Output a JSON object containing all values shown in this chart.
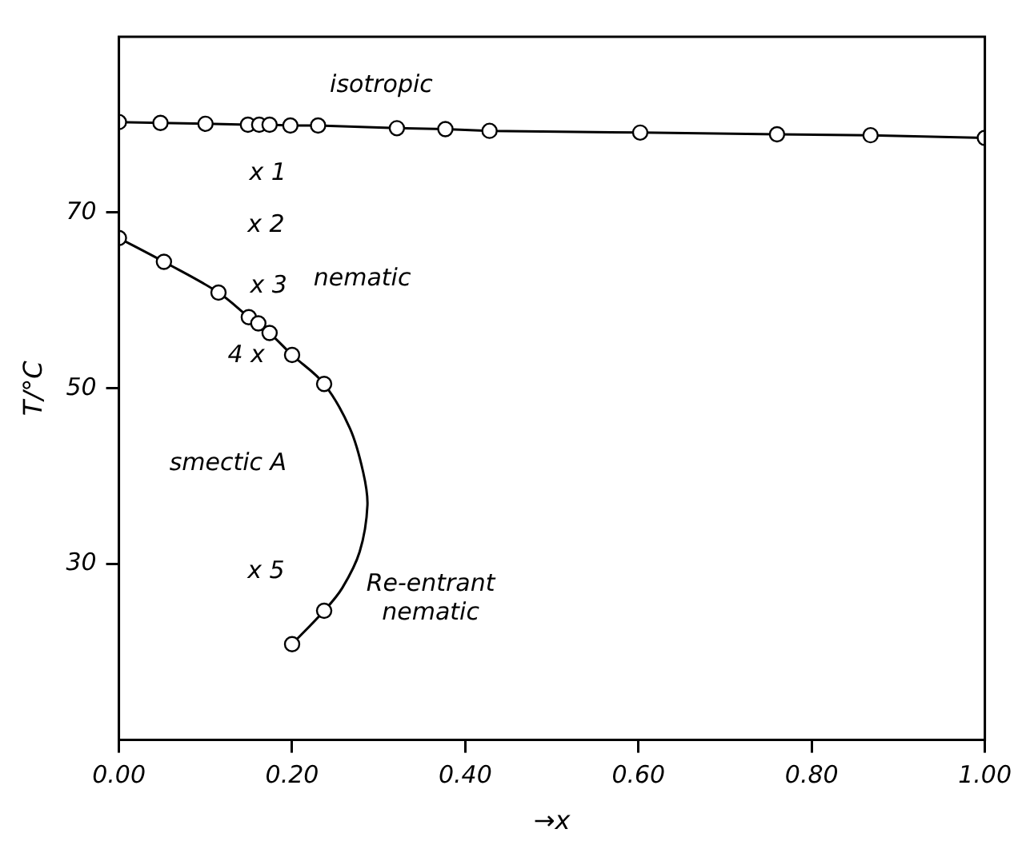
{
  "chart_data": {
    "type": "line",
    "xlabel": "→x",
    "ylabel": "T/°C",
    "xlim": [
      0,
      1.0
    ],
    "ylim": [
      10,
      90
    ],
    "xticks": [
      {
        "value": 0,
        "label": "0.00"
      },
      {
        "value": 0.2,
        "label": "0.20"
      },
      {
        "value": 0.4,
        "label": "0.40"
      },
      {
        "value": 0.6,
        "label": "0.60"
      },
      {
        "value": 0.8,
        "label": "0.80"
      },
      {
        "value": 1.0,
        "label": "1.00"
      }
    ],
    "yticks": [
      30,
      50,
      70
    ],
    "grid": false,
    "legend": false,
    "series": [
      {
        "type": "line",
        "marker": "circle",
        "color": "#000000",
        "x": [
          0,
          0.048,
          0.1,
          0.149,
          0.162,
          0.174,
          0.198,
          0.23,
          0.321,
          0.377,
          0.428,
          0.602,
          0.76,
          0.868,
          1.0
        ],
        "values": [
          80.3,
          80.2,
          80.1,
          80.0,
          80.0,
          80.0,
          79.9,
          79.9,
          79.6,
          79.5,
          79.3,
          79.1,
          78.9,
          78.8,
          78.5
        ]
      },
      {
        "type": "scatter",
        "marker": "circle",
        "color": "#000000",
        "x": [
          0,
          0.052,
          0.115,
          0.15,
          0.161,
          0.174,
          0.2,
          0.237,
          0.237,
          0.2
        ],
        "values": [
          67.1,
          64.4,
          60.9,
          58.1,
          57.4,
          56.3,
          53.8,
          50.5,
          24.7,
          20.9
        ]
      },
      {
        "type": "line",
        "marker": "none",
        "color": "#000000",
        "x": [
          0,
          0.052,
          0.115,
          0.15,
          0.174,
          0.2,
          0.237,
          0.267,
          0.282,
          0.287,
          0.278,
          0.258,
          0.237,
          0.2
        ],
        "values": [
          67.1,
          64.4,
          60.9,
          58.1,
          56.3,
          53.8,
          50.5,
          45.4,
          40.5,
          36.7,
          31.4,
          27.3,
          24.7,
          20.9
        ]
      }
    ],
    "annotations": [
      "isotropic",
      "x 1",
      "x 2",
      "x 3",
      "nematic",
      "4 x",
      "smectic A",
      "x 5",
      "Re-entrant\nnematic"
    ]
  }
}
